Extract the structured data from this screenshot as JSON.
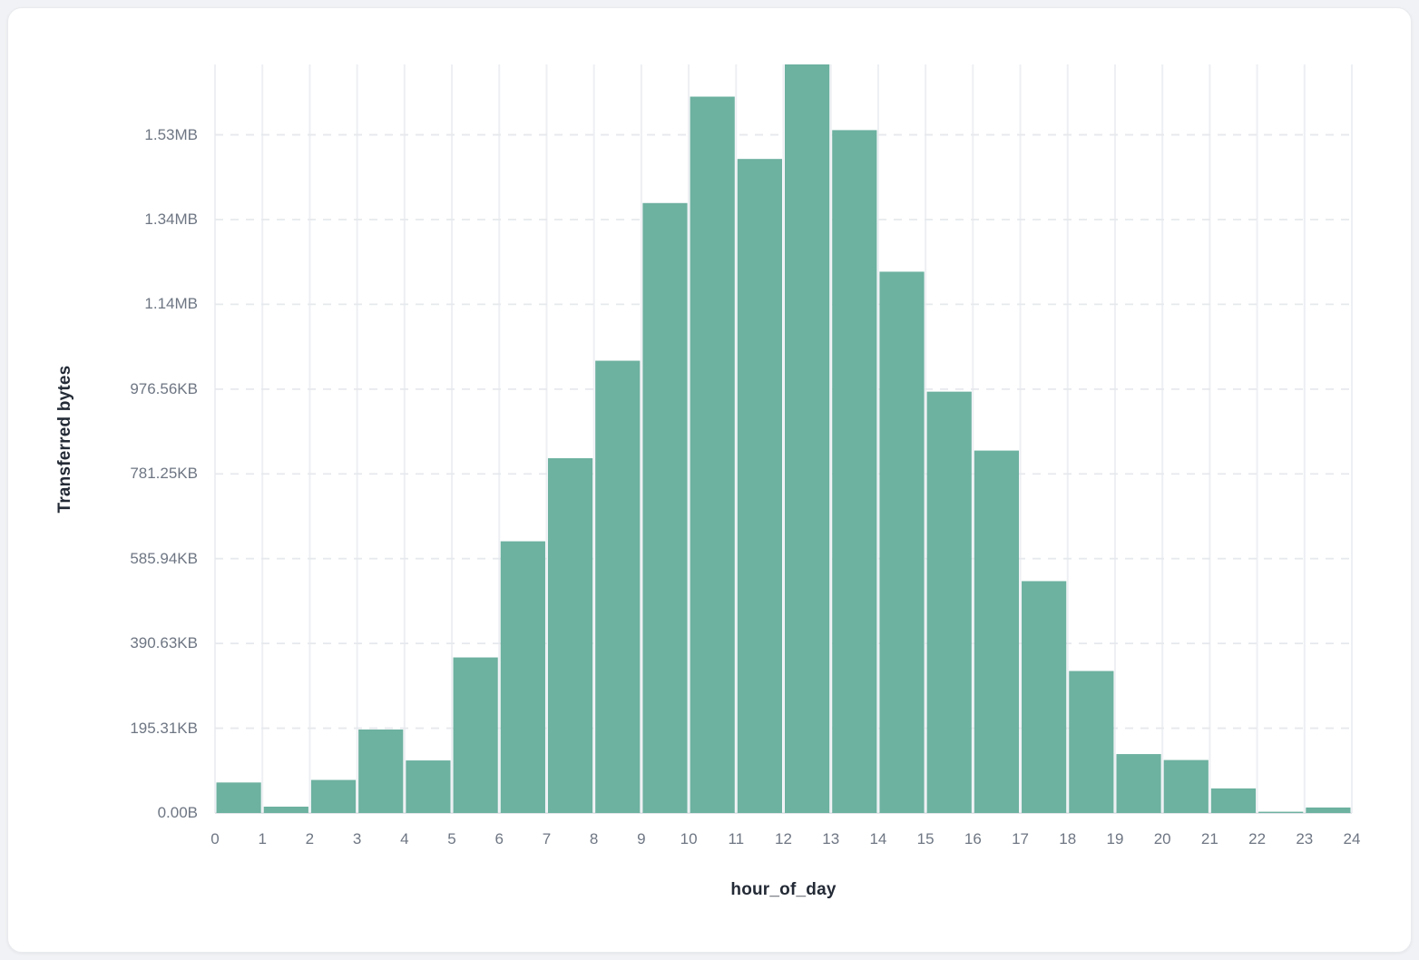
{
  "page": {
    "background_color": "#f0f2f5",
    "card_background_color": "#ffffff",
    "card_border_color": "#e9ebee"
  },
  "chart_data": {
    "type": "bar",
    "title": "",
    "xlabel": "hour_of_day",
    "ylabel": "Transferred bytes",
    "categories": [
      0,
      1,
      2,
      3,
      4,
      5,
      6,
      7,
      8,
      9,
      10,
      11,
      12,
      13,
      14,
      15,
      16,
      17,
      18,
      19,
      20,
      21,
      22,
      23
    ],
    "values": [
      72000,
      15000,
      78000,
      197000,
      124000,
      367000,
      641000,
      837000,
      1067000,
      1439000,
      1690000,
      1543000,
      1766000,
      1611000,
      1277000,
      994000,
      855000,
      547000,
      335000,
      139000,
      125000,
      58000,
      3000,
      13000
    ],
    "values_unit": "bytes",
    "xlim": [
      0,
      24
    ],
    "ylim": [
      0,
      1766000
    ],
    "x_ticks": [
      "0",
      "1",
      "2",
      "3",
      "4",
      "5",
      "6",
      "7",
      "8",
      "9",
      "10",
      "11",
      "12",
      "13",
      "14",
      "15",
      "16",
      "17",
      "18",
      "19",
      "20",
      "21",
      "22",
      "23",
      "24"
    ],
    "y_ticks": [
      {
        "label": "0.00B",
        "value": 0
      },
      {
        "label": "195.31KB",
        "value": 200000
      },
      {
        "label": "390.63KB",
        "value": 400000
      },
      {
        "label": "585.94KB",
        "value": 600000
      },
      {
        "label": "781.25KB",
        "value": 800000
      },
      {
        "label": "976.56KB",
        "value": 1000000
      },
      {
        "label": "1.14MB",
        "value": 1200000
      },
      {
        "label": "1.34MB",
        "value": 1400000
      },
      {
        "label": "1.53MB",
        "value": 1600000
      }
    ],
    "grid": {
      "horizontal": "dashed",
      "vertical": "solid",
      "legend": "none"
    },
    "colors": {
      "bar": "#6db1a0",
      "vertical_grid": "#edeff3",
      "horizontal_grid": "#e6e9ed",
      "axis_line": "#e2e5e9",
      "tick_text": "#6e7683",
      "title_text": "#242b36"
    }
  }
}
